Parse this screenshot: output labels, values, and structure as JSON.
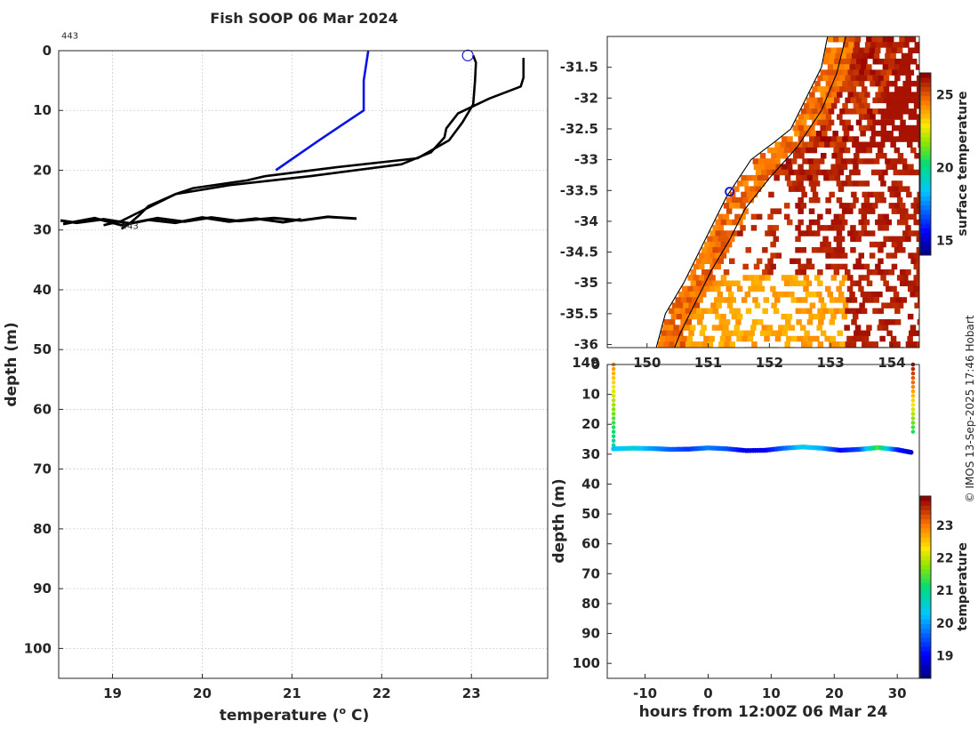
{
  "title": "Fish SOOP 06 Mar 2024",
  "credit": "© IMOS 13-Sep-2025 17:46 Hobart",
  "colors": {
    "blue_profile": "#0a14e6",
    "black_profile": "#000000",
    "circle_marker": "#1a1acc"
  },
  "chart_data": [
    {
      "type": "line",
      "name": "profile",
      "xlabel": "temperature (° C)",
      "ylabel": "depth (m)",
      "xlim": [
        18.4,
        23.85
      ],
      "ylim": [
        105,
        0
      ],
      "xticks": [
        "19",
        "20",
        "21",
        "22",
        "23"
      ],
      "yticks": [
        "0",
        "10",
        "20",
        "30",
        "40",
        "50",
        "60",
        "70",
        "80",
        "90",
        "100"
      ],
      "grid": true,
      "annotations": [
        {
          "text": "443",
          "x": 18.43,
          "y": -2
        },
        {
          "text": "443",
          "x": 19.1,
          "y": 29.8
        }
      ],
      "marker": {
        "x": 22.96,
        "y": 0.8,
        "shape": "circle"
      },
      "series": [
        {
          "color": "#0a14e6",
          "x": [
            21.85,
            21.8,
            21.8,
            21.8,
            21.3,
            20.82
          ],
          "y": [
            0,
            5,
            8,
            10,
            15,
            20
          ]
        },
        {
          "color": "#000000",
          "x": [
            23.02,
            23.05,
            23.04,
            23.02,
            22.9,
            22.75,
            22.4,
            21.5,
            20.7,
            20.5,
            19.9,
            19.7,
            19.4,
            19.3,
            19.2,
            19.1
          ],
          "y": [
            0.8,
            2,
            5,
            9,
            12,
            15,
            18,
            19.5,
            21,
            21.7,
            23,
            24,
            26,
            27.5,
            28.8,
            29.8
          ]
        },
        {
          "color": "#000000",
          "x": [
            23.58,
            23.58,
            23.55,
            23.2,
            22.85,
            22.72,
            22.7,
            22.55,
            22.22,
            21.2,
            20.3,
            19.7,
            19.3,
            19.1,
            18.9
          ],
          "y": [
            1.2,
            4.5,
            6,
            8,
            10.5,
            13,
            14.5,
            17,
            19,
            21,
            22.5,
            24,
            27,
            28.5,
            29.2
          ]
        },
        {
          "color": "#000000",
          "x": [
            18.42,
            18.6,
            18.9,
            19.2,
            19.5,
            19.8,
            20.1,
            20.4,
            20.8,
            21.1,
            21.4,
            21.72
          ],
          "y": [
            28.4,
            28.8,
            28.2,
            28.9,
            28.0,
            28.6,
            27.9,
            28.5,
            28.0,
            28.4,
            27.8,
            28.1
          ]
        },
        {
          "color": "#000000",
          "x": [
            18.45,
            18.8,
            19.1,
            19.4,
            19.7,
            20.0,
            20.3,
            20.6,
            20.9,
            21.1
          ],
          "y": [
            29.0,
            28.0,
            29.2,
            28.3,
            28.8,
            27.9,
            28.6,
            28.1,
            28.7,
            28.2
          ]
        }
      ]
    },
    {
      "type": "heatmap",
      "name": "surface-map",
      "xticks": [
        "149",
        "150",
        "151",
        "152",
        "153",
        "154"
      ],
      "yticks": [
        "-31.5",
        "-32",
        "-32.5",
        "-33",
        "-33.5",
        "-34",
        "-34.5",
        "-35",
        "-35.5",
        "-36"
      ],
      "xlim": [
        149.35,
        154.45
      ],
      "ylim": [
        -36.05,
        -31.0
      ],
      "marker": {
        "x": 151.35,
        "y": -33.52,
        "shape": "circle"
      },
      "colorbar": {
        "label": "surface temperature",
        "ticks": [
          "15",
          "20",
          "25"
        ],
        "range": [
          14,
          26.5
        ]
      }
    },
    {
      "type": "scatter",
      "name": "timeseries",
      "xlabel": "hours from 12:00Z 06 Mar 24",
      "ylabel": "depth (m)",
      "xlim": [
        -16,
        33.5
      ],
      "ylim": [
        105,
        0
      ],
      "xticks": [
        "-10",
        "0",
        "10",
        "20",
        "30"
      ],
      "yticks": [
        "0",
        "10",
        "20",
        "30",
        "40",
        "50",
        "60",
        "70",
        "80",
        "90",
        "100"
      ],
      "colorbar": {
        "label": "temperature",
        "ticks": [
          "19",
          "20",
          "21",
          "22",
          "23"
        ],
        "range": [
          18.3,
          23.9
        ]
      },
      "columns": [
        {
          "x": -15,
          "depth_top": 0,
          "depth_bottom": 27,
          "temp_top": 22.9,
          "temp_bottom": 20.8
        },
        {
          "x": 32.5,
          "depth_top": 0,
          "depth_bottom": 23,
          "temp_top": 23.8,
          "temp_bottom": 21.2
        }
      ],
      "band": {
        "x": [
          -15,
          -12,
          -9,
          -6,
          -3,
          0,
          3,
          6,
          9,
          12,
          15,
          18,
          21,
          24,
          27,
          30,
          32.5
        ],
        "depth": [
          28.2,
          28.0,
          28.1,
          28.4,
          28.3,
          27.9,
          28.2,
          28.8,
          28.7,
          28.0,
          27.6,
          28.0,
          28.7,
          28.4,
          27.8,
          28.5,
          29.5
        ],
        "temp": [
          20.2,
          20.5,
          20.0,
          19.6,
          19.3,
          19.8,
          19.5,
          18.8,
          18.9,
          19.6,
          20.4,
          20.1,
          19.0,
          19.4,
          21.5,
          19.2,
          18.6
        ]
      }
    }
  ]
}
